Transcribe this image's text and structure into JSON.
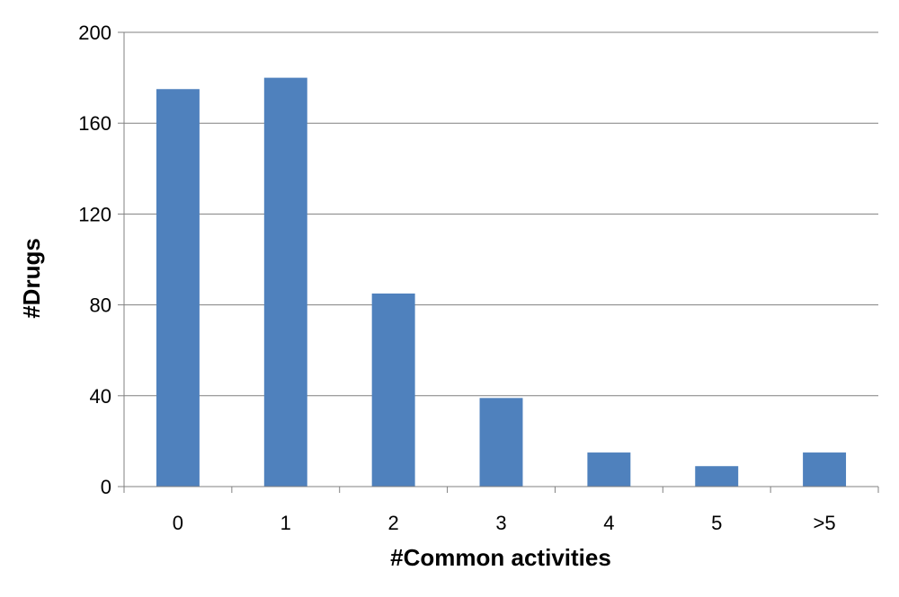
{
  "chart_data": {
    "type": "bar",
    "title": "",
    "xlabel": "#Common activities",
    "ylabel": "#Drugs",
    "categories": [
      "0",
      "1",
      "2",
      "3",
      "4",
      "5",
      ">5"
    ],
    "values": [
      175,
      180,
      85,
      39,
      15,
      9,
      15
    ],
    "ylim": [
      0,
      200
    ],
    "yticks": [
      0,
      40,
      80,
      120,
      160,
      200
    ],
    "grid": true,
    "legend": "none",
    "bar_color": "#4F81BD",
    "grid_color": "#808080"
  }
}
